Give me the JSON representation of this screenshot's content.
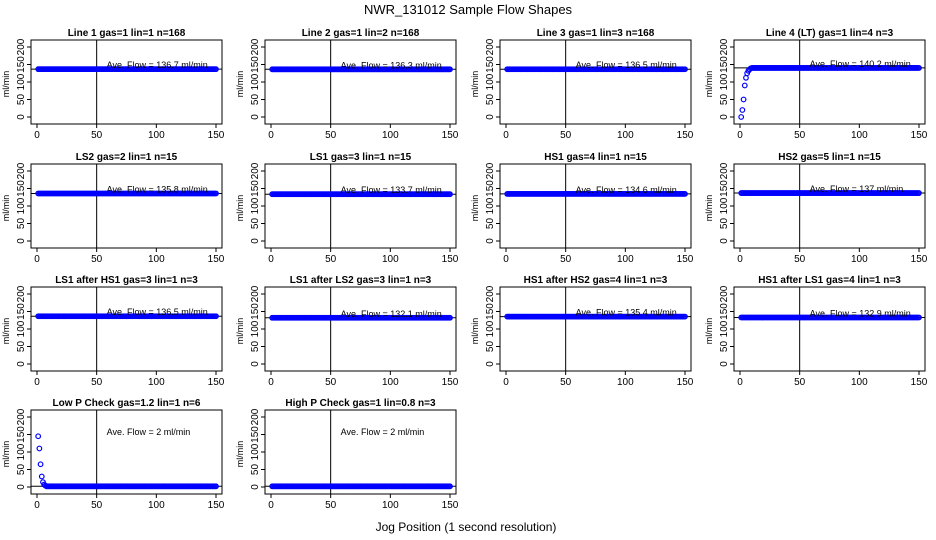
{
  "figure": {
    "title": "NWR_131012  Sample Flow Shapes",
    "xlabel": "Jog Position (1 second resolution)"
  },
  "chart_data": [
    {
      "type": "scatter",
      "title": "Line 1 gas=1 lin=1 n=168",
      "ylabel": "ml/min",
      "xlim": [
        0,
        150
      ],
      "ylim": [
        -20,
        220
      ],
      "xticks": [
        0,
        50,
        100,
        150
      ],
      "yticks": [
        0,
        50,
        100,
        150,
        200
      ],
      "vline": 50,
      "hline": 136.7,
      "annotation": "Ave. Flow = 136.7  ml/min",
      "shape": "flat",
      "n": 150,
      "level": 136.7,
      "point_color": "#0000ff"
    },
    {
      "type": "scatter",
      "title": "Line 2 gas=1 lin=2 n=168",
      "ylabel": "ml/min",
      "xlim": [
        0,
        150
      ],
      "ylim": [
        -20,
        220
      ],
      "xticks": [
        0,
        50,
        100,
        150
      ],
      "yticks": [
        0,
        50,
        100,
        150,
        200
      ],
      "vline": 50,
      "hline": 136.3,
      "annotation": "Ave. Flow = 136.3  ml/min",
      "shape": "flat",
      "n": 150,
      "level": 136.3,
      "point_color": "#0000ff"
    },
    {
      "type": "scatter",
      "title": "Line 3 gas=1 lin=3 n=168",
      "ylabel": "ml/min",
      "xlim": [
        0,
        150
      ],
      "ylim": [
        -20,
        220
      ],
      "xticks": [
        0,
        50,
        100,
        150
      ],
      "yticks": [
        0,
        50,
        100,
        150,
        200
      ],
      "vline": 50,
      "hline": 136.5,
      "annotation": "Ave. Flow = 136.5  ml/min",
      "shape": "flat",
      "n": 150,
      "level": 136.5,
      "point_color": "#0000ff"
    },
    {
      "type": "scatter",
      "title": "Line 4 (LT) gas=1 lin=4 n=3",
      "ylabel": "ml/min",
      "xlim": [
        0,
        150
      ],
      "ylim": [
        -20,
        220
      ],
      "xticks": [
        0,
        50,
        100,
        150
      ],
      "yticks": [
        0,
        50,
        100,
        150,
        200
      ],
      "vline": 50,
      "hline": 140.2,
      "annotation": "Ave. Flow = 140.2  ml/min",
      "shape": "rise",
      "n": 150,
      "level": 140.2,
      "start_values": [
        0,
        20,
        50,
        90,
        112,
        125,
        132,
        136,
        139
      ],
      "point_color": "#0000ff"
    },
    {
      "type": "scatter",
      "title": "LS2 gas=2 lin=1 n=15",
      "ylabel": "ml/min",
      "xlim": [
        0,
        150
      ],
      "ylim": [
        -20,
        220
      ],
      "xticks": [
        0,
        50,
        100,
        150
      ],
      "yticks": [
        0,
        50,
        100,
        150,
        200
      ],
      "vline": 50,
      "hline": 135.8,
      "annotation": "Ave. Flow = 135.8  ml/min",
      "shape": "flat",
      "n": 150,
      "level": 135.8,
      "point_color": "#0000ff"
    },
    {
      "type": "scatter",
      "title": "LS1 gas=3 lin=1 n=15",
      "ylabel": "ml/min",
      "xlim": [
        0,
        150
      ],
      "ylim": [
        -20,
        220
      ],
      "xticks": [
        0,
        50,
        100,
        150
      ],
      "yticks": [
        0,
        50,
        100,
        150,
        200
      ],
      "vline": 50,
      "hline": 133.7,
      "annotation": "Ave. Flow = 133.7  ml/min",
      "shape": "flat",
      "n": 150,
      "level": 133.7,
      "point_color": "#0000ff"
    },
    {
      "type": "scatter",
      "title": "HS1 gas=4 lin=1 n=15",
      "ylabel": "ml/min",
      "xlim": [
        0,
        150
      ],
      "ylim": [
        -20,
        220
      ],
      "xticks": [
        0,
        50,
        100,
        150
      ],
      "yticks": [
        0,
        50,
        100,
        150,
        200
      ],
      "vline": 50,
      "hline": 134.6,
      "annotation": "Ave. Flow = 134.6  ml/min",
      "shape": "flat",
      "n": 150,
      "level": 134.6,
      "point_color": "#0000ff"
    },
    {
      "type": "scatter",
      "title": "HS2 gas=5 lin=1 n=15",
      "ylabel": "ml/min",
      "xlim": [
        0,
        150
      ],
      "ylim": [
        -20,
        220
      ],
      "xticks": [
        0,
        50,
        100,
        150
      ],
      "yticks": [
        0,
        50,
        100,
        150,
        200
      ],
      "vline": 50,
      "hline": 137,
      "annotation": "Ave. Flow = 137  ml/min",
      "shape": "flat",
      "n": 150,
      "level": 137,
      "point_color": "#0000ff"
    },
    {
      "type": "scatter",
      "title": "LS1 after HS1 gas=3 lin=1 n=3",
      "ylabel": "ml/min",
      "xlim": [
        0,
        150
      ],
      "ylim": [
        -20,
        220
      ],
      "xticks": [
        0,
        50,
        100,
        150
      ],
      "yticks": [
        0,
        50,
        100,
        150,
        200
      ],
      "vline": 50,
      "hline": 136.5,
      "annotation": "Ave. Flow = 136.5  ml/min",
      "shape": "flat",
      "n": 150,
      "level": 136.5,
      "point_color": "#0000ff"
    },
    {
      "type": "scatter",
      "title": "LS1 after LS2 gas=3 lin=1 n=3",
      "ylabel": "ml/min",
      "xlim": [
        0,
        150
      ],
      "ylim": [
        -20,
        220
      ],
      "xticks": [
        0,
        50,
        100,
        150
      ],
      "yticks": [
        0,
        50,
        100,
        150,
        200
      ],
      "vline": 50,
      "hline": 132.1,
      "annotation": "Ave. Flow = 132.1  ml/min",
      "shape": "flat",
      "n": 150,
      "level": 132.1,
      "point_color": "#0000ff"
    },
    {
      "type": "scatter",
      "title": "HS1 after HS2 gas=4 lin=1 n=3",
      "ylabel": "ml/min",
      "xlim": [
        0,
        150
      ],
      "ylim": [
        -20,
        220
      ],
      "xticks": [
        0,
        50,
        100,
        150
      ],
      "yticks": [
        0,
        50,
        100,
        150,
        200
      ],
      "vline": 50,
      "hline": 135.4,
      "annotation": "Ave. Flow = 135.4  ml/min",
      "shape": "flat",
      "n": 150,
      "level": 135.4,
      "point_color": "#0000ff"
    },
    {
      "type": "scatter",
      "title": "HS1 after LS1 gas=4 lin=1 n=3",
      "ylabel": "ml/min",
      "xlim": [
        0,
        150
      ],
      "ylim": [
        -20,
        220
      ],
      "xticks": [
        0,
        50,
        100,
        150
      ],
      "yticks": [
        0,
        50,
        100,
        150,
        200
      ],
      "vline": 50,
      "hline": 132.9,
      "annotation": "Ave. Flow = 132.9  ml/min",
      "shape": "flat",
      "n": 150,
      "level": 132.9,
      "point_color": "#0000ff"
    },
    {
      "type": "scatter",
      "title": "Low P Check gas=1.2 lin=1 n=6",
      "ylabel": "ml/min",
      "xlim": [
        0,
        150
      ],
      "ylim": [
        -20,
        220
      ],
      "xticks": [
        0,
        50,
        100,
        150
      ],
      "yticks": [
        0,
        50,
        100,
        150,
        200
      ],
      "vline": 50,
      "hline": 2,
      "annotation": "Ave. Flow =  2  ml/min",
      "shape": "decay",
      "n": 150,
      "level": 2,
      "start_values": [
        145,
        110,
        65,
        30,
        14,
        7,
        4
      ],
      "point_color": "#0000ff"
    },
    {
      "type": "scatter",
      "title": "High P Check gas=1 lin=0.8 n=3",
      "ylabel": "ml/min",
      "xlim": [
        0,
        150
      ],
      "ylim": [
        -20,
        220
      ],
      "xticks": [
        0,
        50,
        100,
        150
      ],
      "yticks": [
        0,
        50,
        100,
        150,
        200
      ],
      "vline": 50,
      "hline": 2,
      "annotation": "Ave. Flow =  2  ml/min",
      "shape": "flat",
      "n": 150,
      "level": 2,
      "point_color": "#0000ff"
    }
  ]
}
